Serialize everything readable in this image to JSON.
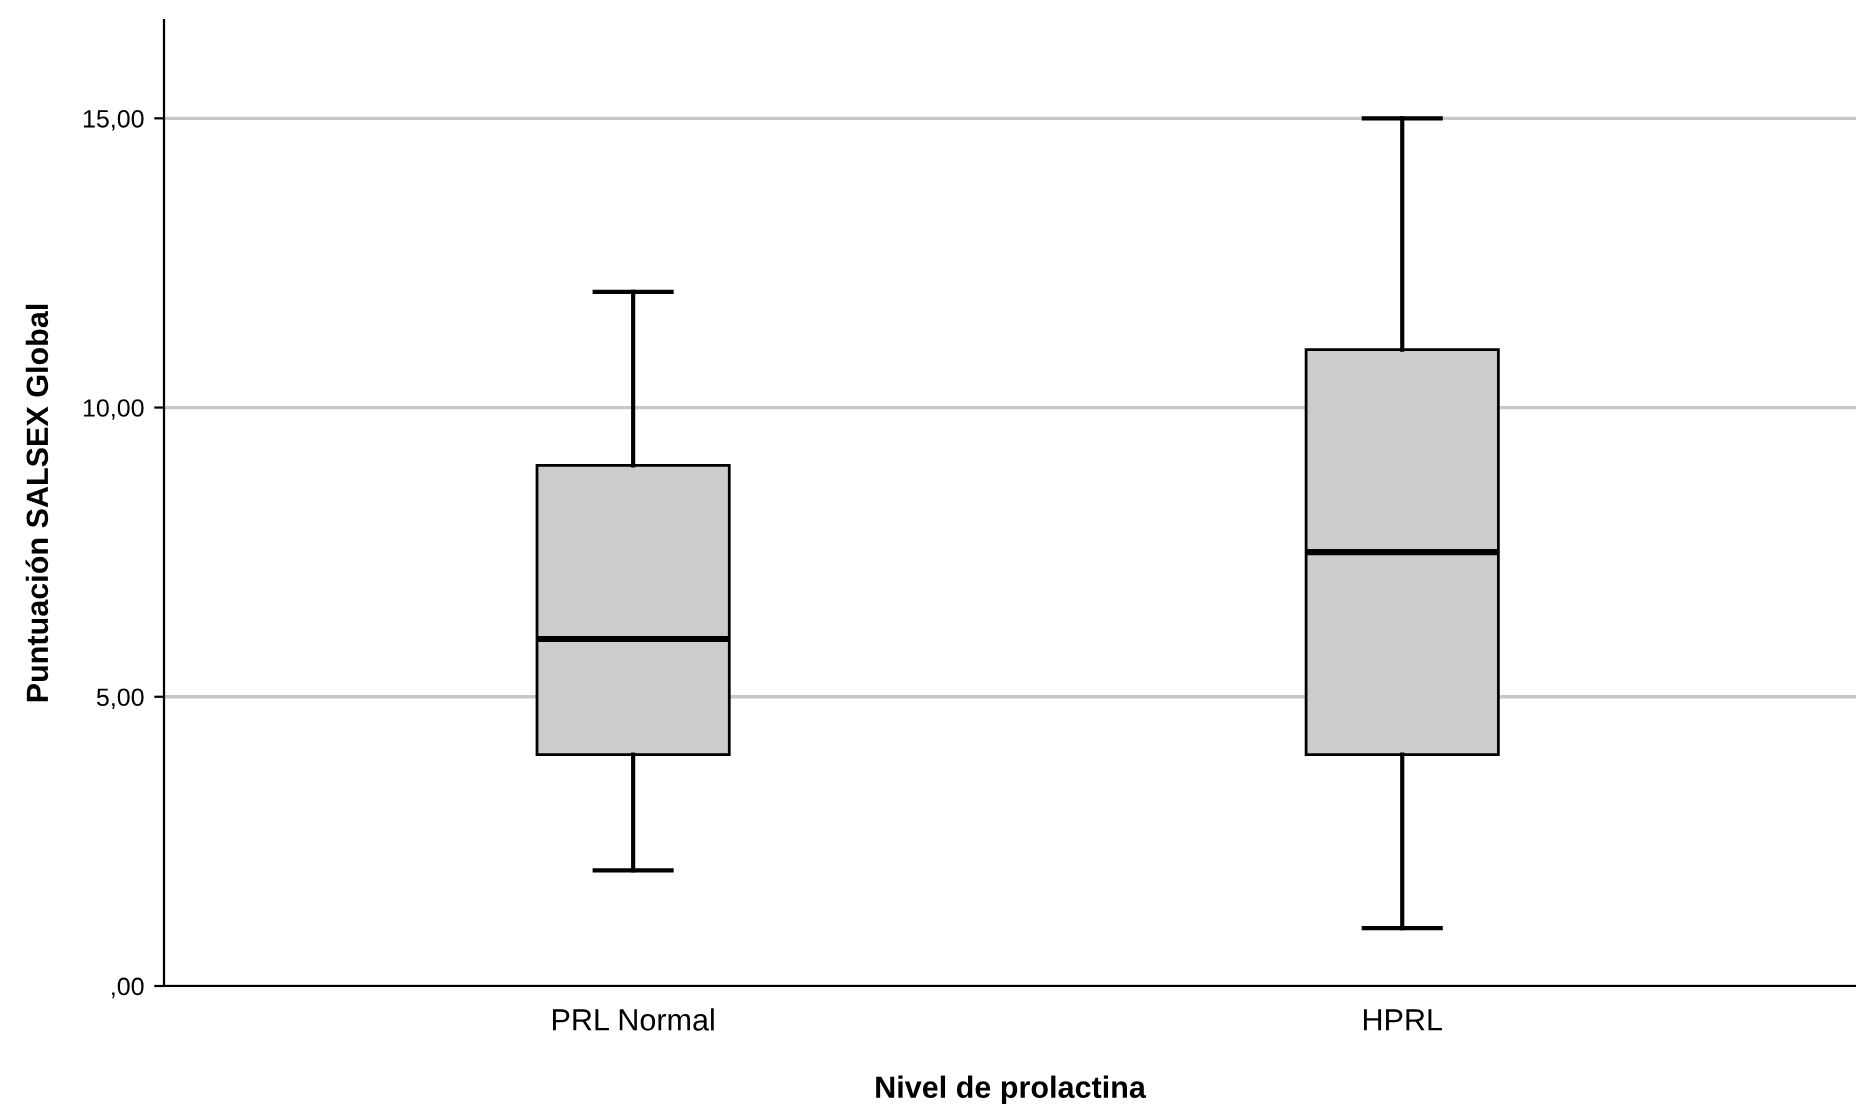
{
  "chart_data": {
    "type": "box",
    "xlabel": "Nivel de prolactina",
    "ylabel": "Puntuación SALSEX Global",
    "categories": [
      "PRL Normal",
      "HPRL"
    ],
    "boxes": [
      {
        "low": 2,
        "q1": 4,
        "median": 6,
        "q3": 9,
        "high": 12
      },
      {
        "low": 1,
        "q1": 4,
        "median": 7.5,
        "q3": 11,
        "high": 15
      }
    ],
    "color": "#cccccc",
    "ylim": [
      0,
      16.7
    ],
    "yticks": [
      {
        "value": 0,
        "label": ",00"
      },
      {
        "value": 5,
        "label": "5,00"
      },
      {
        "value": 10,
        "label": "10,00"
      },
      {
        "value": 15,
        "label": "15,00"
      }
    ],
    "grid": "y"
  }
}
